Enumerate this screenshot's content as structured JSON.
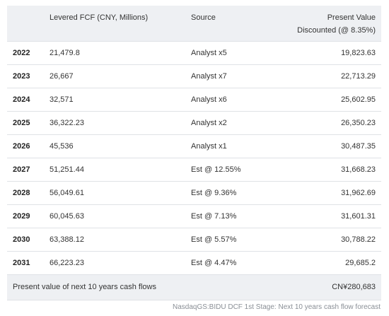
{
  "table": {
    "header": {
      "year": "",
      "fcf": "Levered FCF (CNY, Millions)",
      "source": "Source",
      "pv_line1": "Present Value",
      "pv_line2": "Discounted (@ 8.35%)"
    },
    "rows": [
      {
        "year": "2022",
        "fcf": "21,479.8",
        "source": "Analyst x5",
        "pv": "19,823.63"
      },
      {
        "year": "2023",
        "fcf": "26,667",
        "source": "Analyst x7",
        "pv": "22,713.29"
      },
      {
        "year": "2024",
        "fcf": "32,571",
        "source": "Analyst x6",
        "pv": "25,602.95"
      },
      {
        "year": "2025",
        "fcf": "36,322.23",
        "source": "Analyst x2",
        "pv": "26,350.23"
      },
      {
        "year": "2026",
        "fcf": "45,536",
        "source": "Analyst x1",
        "pv": "30,487.35"
      },
      {
        "year": "2027",
        "fcf": "51,251.44",
        "source": "Est @ 12.55%",
        "pv": "31,668.23"
      },
      {
        "year": "2028",
        "fcf": "56,049.61",
        "source": "Est @ 9.36%",
        "pv": "31,962.69"
      },
      {
        "year": "2029",
        "fcf": "60,045.63",
        "source": "Est @ 7.13%",
        "pv": "31,601.31"
      },
      {
        "year": "2030",
        "fcf": "63,388.12",
        "source": "Est @ 5.57%",
        "pv": "30,788.22"
      },
      {
        "year": "2031",
        "fcf": "66,223.23",
        "source": "Est @ 4.47%",
        "pv": "29,685.2"
      }
    ],
    "total": {
      "label": "Present value of next 10 years cash flows",
      "value": "CN¥280,683"
    }
  },
  "footnote": "NasdaqGS:BIDU DCF 1st Stage: Next 10 years cash flow forecast",
  "colors": {
    "header_bg": "#eef0f3",
    "row_border": "#dfe2e6",
    "text": "#333333",
    "footnote": "#8a8f96"
  }
}
